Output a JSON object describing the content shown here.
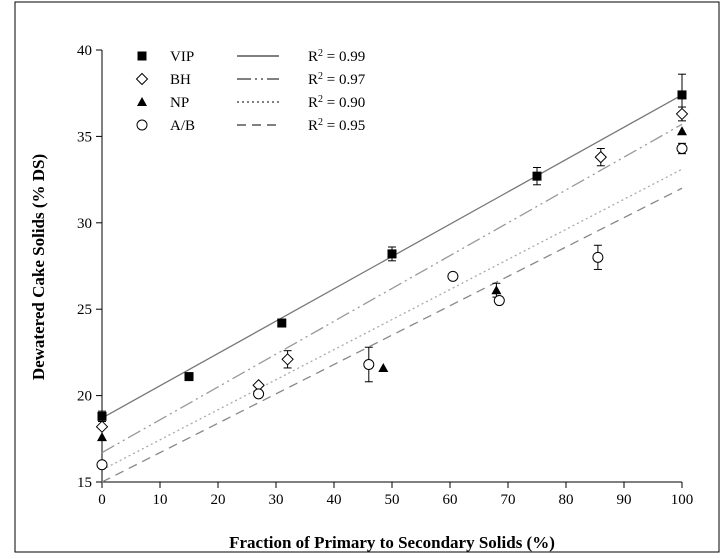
{
  "chart_data": {
    "type": "scatter",
    "title": "",
    "xlabel": "Fraction of Primary to Secondary Solids (%)",
    "ylabel": "Dewatered Cake Solids (% DS)",
    "xlim": [
      0,
      100
    ],
    "ylim": [
      15,
      40
    ],
    "x_ticks": [
      0,
      10,
      20,
      30,
      40,
      50,
      60,
      70,
      80,
      90,
      100
    ],
    "y_ticks": [
      15,
      20,
      25,
      30,
      35,
      40
    ],
    "grid": false,
    "legend_position": "top-left",
    "series": [
      {
        "name": "VIP",
        "marker": "filled-square",
        "line_style": "solid",
        "r2_label": "R",
        "r2_value": " = 0.99",
        "line": {
          "intercept": 18.7,
          "slope": 0.187
        },
        "points": [
          {
            "x": 0,
            "y": 18.8,
            "err": 0.3
          },
          {
            "x": 15,
            "y": 21.1,
            "err": 0
          },
          {
            "x": 31,
            "y": 24.2,
            "err": 0
          },
          {
            "x": 50,
            "y": 28.2,
            "err": 0.4
          },
          {
            "x": 75,
            "y": 32.7,
            "err": 0.5
          },
          {
            "x": 100,
            "y": 37.4,
            "err": 1.2
          }
        ]
      },
      {
        "name": "BH",
        "marker": "open-diamond",
        "line_style": "dash-dot-dot",
        "r2_label": "R",
        "r2_value": " = 0.97",
        "line": {
          "intercept": 16.7,
          "slope": 0.19
        },
        "points": [
          {
            "x": 0,
            "y": 18.2,
            "err": 0
          },
          {
            "x": 27,
            "y": 20.6,
            "err": 0
          },
          {
            "x": 32,
            "y": 22.1,
            "err": 0.5
          },
          {
            "x": 86,
            "y": 33.8,
            "err": 0.5
          },
          {
            "x": 100,
            "y": 36.3,
            "err": 0.4
          }
        ]
      },
      {
        "name": "NP",
        "marker": "filled-triangle",
        "line_style": "dotted",
        "r2_label": "R",
        "r2_value": " = 0.90",
        "line": {
          "intercept": 15.7,
          "slope": 0.174
        },
        "points": [
          {
            "x": 0,
            "y": 17.6,
            "err": 0
          },
          {
            "x": 48.5,
            "y": 21.6,
            "err": 0
          },
          {
            "x": 68,
            "y": 26.1,
            "err": 0.4
          },
          {
            "x": 100,
            "y": 35.3,
            "err": 0
          }
        ]
      },
      {
        "name": "A/B",
        "marker": "open-circle",
        "line_style": "dashed",
        "r2_label": "R",
        "r2_value": " = 0.95",
        "line": {
          "intercept": 15.0,
          "slope": 0.17
        },
        "points": [
          {
            "x": 0,
            "y": 16.0,
            "err": 0
          },
          {
            "x": 27,
            "y": 20.1,
            "err": 0
          },
          {
            "x": 46,
            "y": 21.8,
            "err": 1.0
          },
          {
            "x": 60.5,
            "y": 26.9,
            "err": 0
          },
          {
            "x": 68.5,
            "y": 25.5,
            "err": 0
          },
          {
            "x": 85.5,
            "y": 28.0,
            "err": 0.7
          },
          {
            "x": 100,
            "y": 34.3,
            "err": 0.3
          }
        ]
      }
    ]
  }
}
